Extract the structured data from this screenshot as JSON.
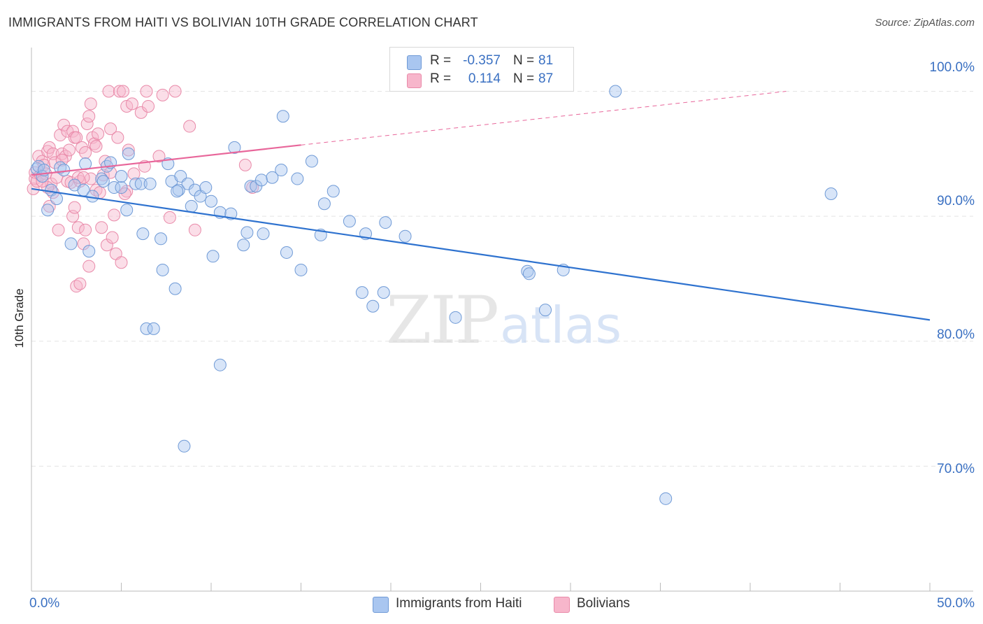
{
  "title": "IMMIGRANTS FROM HAITI VS BOLIVIAN 10TH GRADE CORRELATION CHART",
  "source": "Source: ZipAtlas.com",
  "watermark": {
    "zip": "ZIP",
    "atlas": "atlas"
  },
  "legend": {
    "rows": [
      {
        "r_label": "R =",
        "r_value": "-0.357",
        "n_label": "N =",
        "n_value": "81",
        "color": "#a9c6f0"
      },
      {
        "r_label": "R =",
        "r_value": "0.114",
        "n_label": "N =",
        "n_value": "87",
        "color": "#f7b6cb"
      }
    ]
  },
  "bottom_legend": [
    {
      "label": "Immigrants from Haiti",
      "color": "#a9c6f0"
    },
    {
      "label": "Bolivians",
      "color": "#f7b6cb"
    }
  ],
  "colors": {
    "blue_point_fill": "#a9c6f0",
    "blue_point_stroke": "#6f9ad6",
    "blue_line": "#2e72cf",
    "pink_point_fill": "#f7b6cb",
    "pink_point_stroke": "#e98aa9",
    "pink_line": "#e8669a",
    "grid": "#e4e4e4",
    "axis": "#bbbbbb",
    "tick_label": "#3a70c2"
  },
  "chart_data": {
    "type": "scatter",
    "title": "IMMIGRANTS FROM HAITI VS BOLIVIAN 10TH GRADE CORRELATION CHART",
    "xlabel": "",
    "ylabel": "10th Grade",
    "xlim": [
      0,
      50
    ],
    "ylim": [
      60,
      103.5
    ],
    "x_tick_labels": [
      {
        "value": 0,
        "label": "0.0%"
      },
      {
        "value": 50,
        "label": "50.0%"
      }
    ],
    "y_tick_labels": [
      {
        "value": 100,
        "label": "100.0%"
      },
      {
        "value": 90,
        "label": "90.0%"
      },
      {
        "value": 80,
        "label": "80.0%"
      },
      {
        "value": 70,
        "label": "70.0%"
      }
    ],
    "series": [
      {
        "name": "Immigrants from Haiti",
        "R": -0.357,
        "N": 81,
        "trend": {
          "x0": 0,
          "y0": 92.2,
          "x1": 50,
          "y1": 81.7
        },
        "points": [
          [
            0.3,
            93.8
          ],
          [
            0.4,
            94.0
          ],
          [
            0.6,
            93.2
          ],
          [
            0.7,
            93.7
          ],
          [
            0.9,
            90.5
          ],
          [
            1.1,
            92.1
          ],
          [
            1.4,
            91.4
          ],
          [
            1.6,
            93.9
          ],
          [
            1.8,
            93.7
          ],
          [
            2.2,
            87.8
          ],
          [
            2.4,
            92.5
          ],
          [
            2.9,
            92.1
          ],
          [
            3.0,
            94.2
          ],
          [
            3.2,
            87.2
          ],
          [
            3.4,
            91.6
          ],
          [
            3.9,
            93.0
          ],
          [
            4.0,
            92.8
          ],
          [
            4.2,
            94.0
          ],
          [
            4.4,
            94.3
          ],
          [
            4.6,
            92.3
          ],
          [
            5.0,
            92.3
          ],
          [
            5.0,
            93.2
          ],
          [
            5.3,
            90.5
          ],
          [
            5.4,
            95.0
          ],
          [
            5.8,
            92.6
          ],
          [
            6.1,
            92.6
          ],
          [
            6.2,
            88.6
          ],
          [
            6.4,
            81.0
          ],
          [
            6.6,
            92.6
          ],
          [
            6.8,
            81.0
          ],
          [
            7.2,
            88.2
          ],
          [
            7.3,
            85.7
          ],
          [
            7.6,
            94.2
          ],
          [
            7.8,
            92.8
          ],
          [
            8.0,
            84.2
          ],
          [
            8.2,
            92.1
          ],
          [
            8.3,
            93.2
          ],
          [
            8.5,
            71.6
          ],
          [
            8.7,
            92.6
          ],
          [
            8.9,
            90.8
          ],
          [
            9.1,
            92.1
          ],
          [
            9.4,
            91.6
          ],
          [
            9.7,
            92.3
          ],
          [
            10.0,
            91.2
          ],
          [
            10.1,
            86.8
          ],
          [
            10.5,
            90.3
          ],
          [
            10.5,
            78.1
          ],
          [
            11.1,
            90.2
          ],
          [
            11.3,
            95.5
          ],
          [
            11.8,
            87.7
          ],
          [
            12.0,
            88.7
          ],
          [
            12.2,
            92.4
          ],
          [
            12.5,
            92.4
          ],
          [
            12.8,
            92.9
          ],
          [
            12.9,
            88.6
          ],
          [
            13.4,
            93.1
          ],
          [
            13.9,
            93.7
          ],
          [
            14.0,
            98.0
          ],
          [
            14.2,
            87.1
          ],
          [
            14.8,
            93.0
          ],
          [
            15.0,
            85.7
          ],
          [
            15.6,
            94.4
          ],
          [
            16.1,
            88.5
          ],
          [
            16.3,
            91.0
          ],
          [
            16.8,
            92.0
          ],
          [
            17.7,
            89.6
          ],
          [
            18.4,
            83.9
          ],
          [
            18.6,
            88.6
          ],
          [
            19.0,
            82.8
          ],
          [
            19.6,
            83.9
          ],
          [
            19.7,
            89.5
          ],
          [
            20.8,
            88.4
          ],
          [
            23.6,
            81.9
          ],
          [
            27.6,
            85.6
          ],
          [
            27.7,
            85.4
          ],
          [
            28.6,
            82.5
          ],
          [
            29.6,
            85.7
          ],
          [
            32.5,
            100.0
          ],
          [
            35.3,
            67.4
          ],
          [
            44.5,
            91.8
          ],
          [
            8.1,
            92.0
          ]
        ]
      },
      {
        "name": "Bolivians",
        "R": 0.114,
        "N": 87,
        "trend": {
          "x0": 0,
          "y0": 93.3,
          "x1": 15,
          "y1": 95.7
        },
        "trend_extension": {
          "x0": 15,
          "y0": 95.7,
          "x1": 42,
          "y1": 100.0
        },
        "points": [
          [
            0.1,
            92.2
          ],
          [
            0.2,
            93.0
          ],
          [
            0.2,
            93.5
          ],
          [
            0.3,
            92.8
          ],
          [
            0.4,
            94.8
          ],
          [
            0.5,
            93.3
          ],
          [
            0.6,
            94.4
          ],
          [
            0.7,
            94.1
          ],
          [
            0.8,
            93.4
          ],
          [
            0.9,
            95.2
          ],
          [
            1.0,
            95.5
          ],
          [
            1.1,
            92.6
          ],
          [
            1.2,
            95.0
          ],
          [
            1.3,
            94.3
          ],
          [
            1.4,
            93.1
          ],
          [
            1.5,
            88.9
          ],
          [
            1.6,
            96.5
          ],
          [
            1.7,
            95.0
          ],
          [
            1.8,
            97.3
          ],
          [
            1.9,
            94.8
          ],
          [
            2.0,
            92.8
          ],
          [
            2.0,
            96.8
          ],
          [
            2.1,
            95.3
          ],
          [
            2.2,
            92.7
          ],
          [
            2.3,
            96.8
          ],
          [
            2.3,
            90.0
          ],
          [
            2.4,
            96.3
          ],
          [
            2.4,
            90.7
          ],
          [
            2.5,
            84.4
          ],
          [
            2.5,
            96.3
          ],
          [
            2.6,
            89.1
          ],
          [
            2.7,
            84.6
          ],
          [
            2.7,
            92.8
          ],
          [
            2.8,
            95.5
          ],
          [
            2.9,
            87.8
          ],
          [
            3.0,
            95.1
          ],
          [
            3.0,
            88.9
          ],
          [
            3.1,
            97.4
          ],
          [
            3.2,
            86.0
          ],
          [
            3.2,
            98.0
          ],
          [
            3.3,
            99.0
          ],
          [
            3.3,
            93.0
          ],
          [
            3.4,
            96.3
          ],
          [
            3.5,
            95.8
          ],
          [
            3.6,
            95.6
          ],
          [
            3.6,
            92.1
          ],
          [
            3.7,
            96.6
          ],
          [
            3.9,
            89.1
          ],
          [
            4.0,
            93.3
          ],
          [
            4.2,
            87.7
          ],
          [
            4.3,
            100.0
          ],
          [
            4.4,
            93.5
          ],
          [
            4.4,
            97.0
          ],
          [
            4.5,
            88.3
          ],
          [
            4.6,
            90.1
          ],
          [
            4.7,
            87.0
          ],
          [
            4.8,
            96.3
          ],
          [
            4.9,
            100.0
          ],
          [
            5.0,
            86.3
          ],
          [
            5.1,
            100.0
          ],
          [
            5.3,
            98.8
          ],
          [
            5.3,
            92.0
          ],
          [
            5.4,
            95.3
          ],
          [
            5.6,
            99.0
          ],
          [
            5.7,
            93.4
          ],
          [
            6.1,
            98.3
          ],
          [
            6.4,
            100.0
          ],
          [
            6.5,
            98.8
          ],
          [
            7.1,
            94.8
          ],
          [
            7.3,
            99.7
          ],
          [
            7.7,
            89.9
          ],
          [
            8.0,
            100.0
          ],
          [
            8.8,
            97.2
          ],
          [
            9.1,
            88.9
          ],
          [
            11.9,
            94.1
          ],
          [
            12.3,
            92.3
          ],
          [
            3.8,
            91.9
          ],
          [
            2.6,
            93.1
          ],
          [
            1.2,
            91.9
          ],
          [
            0.9,
            92.3
          ],
          [
            0.6,
            92.8
          ],
          [
            1.7,
            94.5
          ],
          [
            2.9,
            93.1
          ],
          [
            4.1,
            94.4
          ],
          [
            5.2,
            91.8
          ],
          [
            6.3,
            94.0
          ],
          [
            1.0,
            90.8
          ]
        ]
      }
    ]
  }
}
